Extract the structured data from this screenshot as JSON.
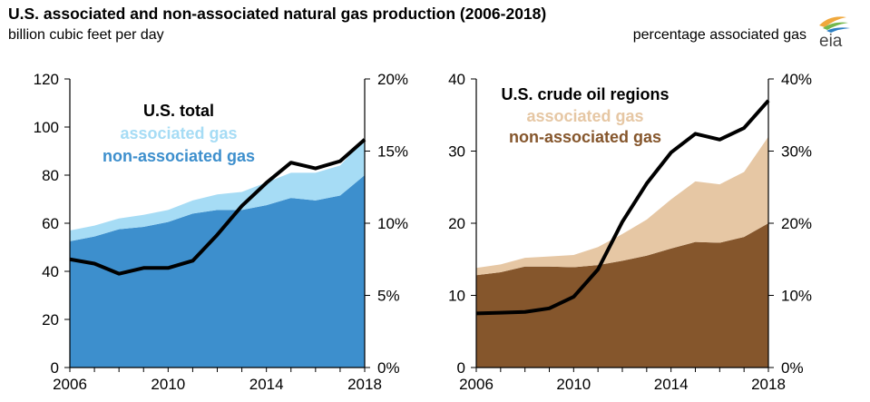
{
  "page": {
    "title": "U.S. associated and non-associated natural gas production (2006-2018)",
    "left_unit": "billion cubic feet per day",
    "right_unit": "percentage associated gas",
    "logo_text": "eia"
  },
  "colors": {
    "left_non_associated": "#3d8fcd",
    "left_associated": "#a6dcf5",
    "right_non_associated": "#85562c",
    "right_associated": "#e6c7a4",
    "line": "#000000"
  },
  "chart_data": [
    {
      "type": "area",
      "title": "U.S. total",
      "x": [
        2006,
        2007,
        2008,
        2009,
        2010,
        2011,
        2012,
        2013,
        2014,
        2015,
        2016,
        2017,
        2018
      ],
      "xticks": [
        2006,
        2010,
        2014,
        2018
      ],
      "xtick_labels": [
        "2006",
        "2010",
        "2014",
        "2018"
      ],
      "ylim": [
        0,
        120
      ],
      "yticks": [
        0,
        20,
        40,
        60,
        80,
        100,
        120
      ],
      "ytick_labels": [
        "0",
        "20",
        "40",
        "60",
        "80",
        "100",
        "120"
      ],
      "y2lim": [
        0,
        20
      ],
      "y2ticks": [
        0,
        5,
        10,
        15,
        20
      ],
      "y2tick_labels": [
        "0%",
        "5%",
        "10%",
        "15%",
        "20%"
      ],
      "stacked": true,
      "series": [
        {
          "name": "non-associated gas",
          "values": [
            52.5,
            54.5,
            57.5,
            58.5,
            60.5,
            64.0,
            65.5,
            65.5,
            67.5,
            70.5,
            69.5,
            71.5,
            80.0
          ]
        },
        {
          "name": "associated gas",
          "values": [
            4.5,
            4.5,
            4.5,
            5.0,
            5.0,
            5.5,
            6.5,
            7.5,
            9.5,
            10.5,
            11.5,
            12.5,
            15.0
          ]
        }
      ],
      "line": {
        "axis": "right",
        "values": [
          7.5,
          7.2,
          6.5,
          6.9,
          6.9,
          7.4,
          9.2,
          11.2,
          12.8,
          14.2,
          13.8,
          14.3,
          15.8
        ]
      },
      "grid": false
    },
    {
      "type": "area",
      "title": "U.S. crude oil regions",
      "x": [
        2006,
        2007,
        2008,
        2009,
        2010,
        2011,
        2012,
        2013,
        2014,
        2015,
        2016,
        2017,
        2018
      ],
      "xticks": [
        2006,
        2010,
        2014,
        2018
      ],
      "xtick_labels": [
        "2006",
        "2010",
        "2014",
        "2018"
      ],
      "ylim": [
        0,
        40
      ],
      "yticks": [
        0,
        10,
        20,
        30,
        40
      ],
      "ytick_labels": [
        "0",
        "10",
        "20",
        "30",
        "40"
      ],
      "y2lim": [
        0,
        40
      ],
      "y2ticks": [
        0,
        10,
        20,
        30,
        40
      ],
      "y2tick_labels": [
        "0%",
        "10%",
        "20%",
        "30%",
        "40%"
      ],
      "stacked": true,
      "series": [
        {
          "name": "non-associated gas",
          "values": [
            12.8,
            13.2,
            14.0,
            14.0,
            13.9,
            14.2,
            14.8,
            15.5,
            16.5,
            17.4,
            17.3,
            18.1,
            20.0
          ]
        },
        {
          "name": "associated gas",
          "values": [
            1.0,
            1.1,
            1.2,
            1.4,
            1.7,
            2.5,
            3.7,
            5.0,
            6.8,
            8.4,
            8.1,
            9.0,
            12.0
          ]
        }
      ],
      "line": {
        "axis": "right",
        "values": [
          7.5,
          7.6,
          7.7,
          8.2,
          9.8,
          13.6,
          20.2,
          25.5,
          29.8,
          32.4,
          31.6,
          33.2,
          37.0
        ]
      },
      "grid": false
    }
  ]
}
